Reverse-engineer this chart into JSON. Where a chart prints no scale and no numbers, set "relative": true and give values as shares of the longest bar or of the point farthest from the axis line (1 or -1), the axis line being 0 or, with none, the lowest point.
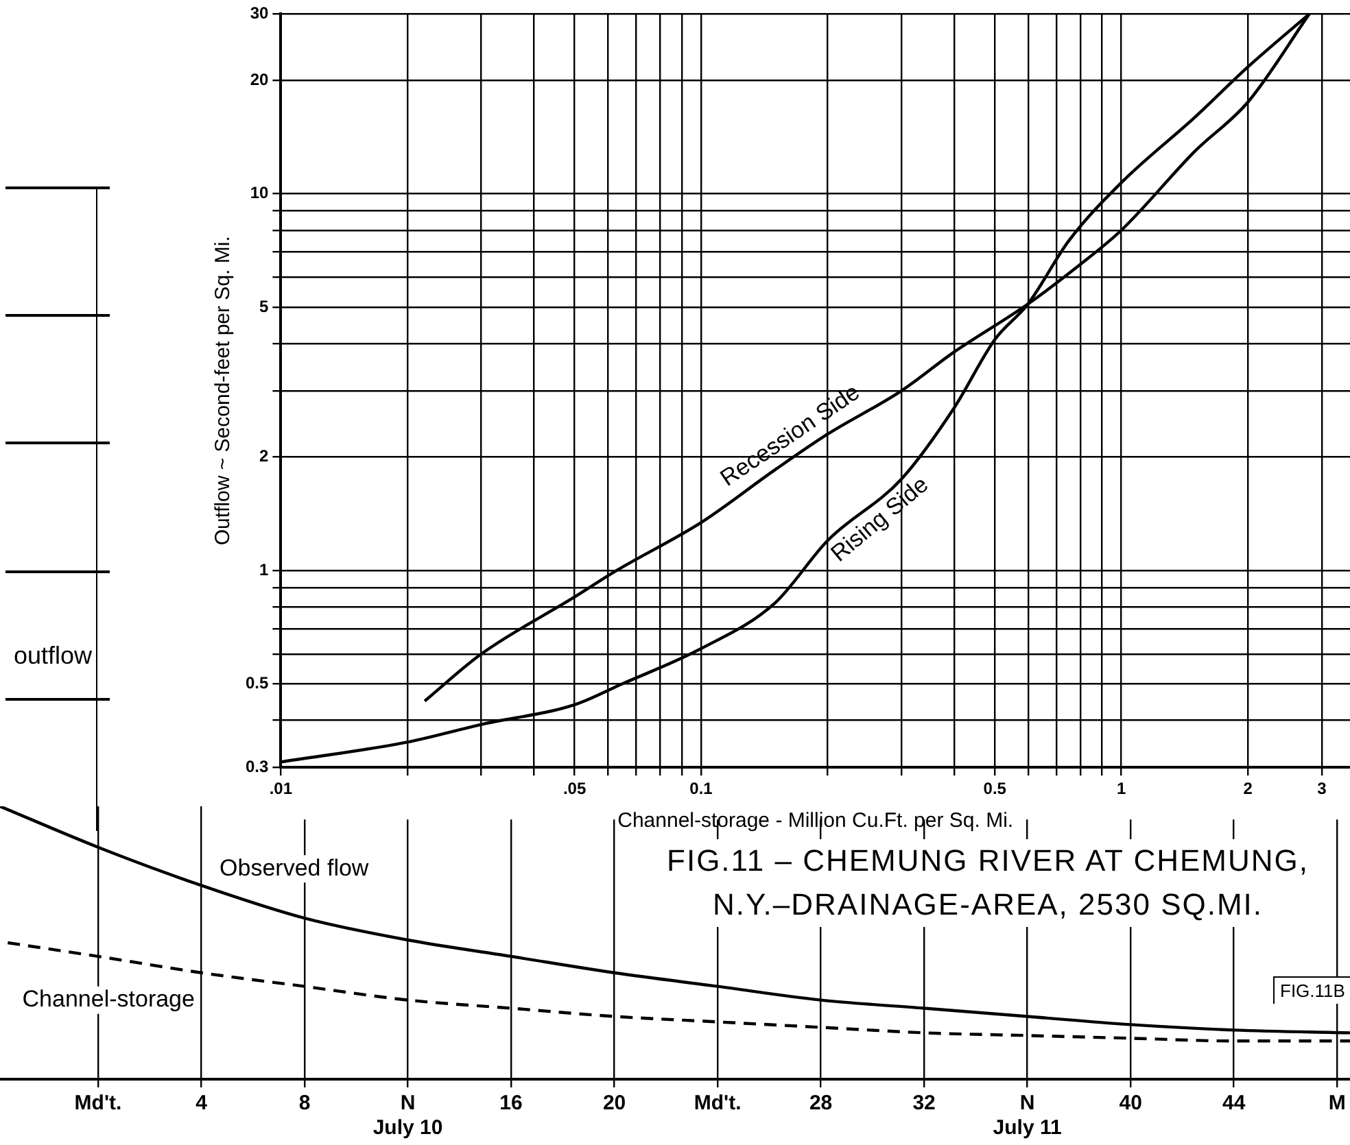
{
  "chart_data": [
    {
      "type": "line",
      "title": "FIG.11 – CHEMUNG RIVER AT CHEMUNG, N.Y.–DRAINAGE-AREA, 2530 SQ.MI.",
      "xlabel": "Channel-storage - Million Cu.Ft. per Sq. Mi.",
      "ylabel": "Outflow ~ Second-feet per Sq. Mi.",
      "log": "xy",
      "xlim": [
        0.01,
        3.5
      ],
      "ylim": [
        0.3,
        30
      ],
      "xticks": [
        {
          "value": 0.01,
          "label": ".01"
        },
        {
          "value": 0.02,
          "label": null
        },
        {
          "value": 0.03,
          "label": null
        },
        {
          "value": 0.04,
          "label": null
        },
        {
          "value": 0.05,
          "label": ".05"
        },
        {
          "value": 0.06,
          "label": null
        },
        {
          "value": 0.07,
          "label": null
        },
        {
          "value": 0.08,
          "label": null
        },
        {
          "value": 0.09,
          "label": null
        },
        {
          "value": 0.1,
          "label": "0.1"
        },
        {
          "value": 0.2,
          "label": null
        },
        {
          "value": 0.3,
          "label": null
        },
        {
          "value": 0.4,
          "label": null
        },
        {
          "value": 0.5,
          "label": "0.5"
        },
        {
          "value": 0.6,
          "label": null
        },
        {
          "value": 0.7,
          "label": null
        },
        {
          "value": 0.8,
          "label": null
        },
        {
          "value": 0.9,
          "label": null
        },
        1,
        2,
        3
      ],
      "yticks": [
        0.3,
        {
          "value": 0.4,
          "label": null
        },
        0.5,
        {
          "value": 0.6,
          "label": null
        },
        {
          "value": 0.7,
          "label": null
        },
        {
          "value": 0.8,
          "label": null
        },
        {
          "value": 0.9,
          "label": null
        },
        1,
        2,
        {
          "value": 3,
          "label": null
        },
        {
          "value": 4,
          "label": null
        },
        5,
        {
          "value": 6,
          "label": null
        },
        {
          "value": 7,
          "label": null
        },
        {
          "value": 8,
          "label": null
        },
        {
          "value": 9,
          "label": null
        },
        10,
        20,
        30
      ],
      "grid": true,
      "legend": false,
      "marker": "none",
      "series": [
        {
          "name": "Recession Side",
          "color": "#000000",
          "x": [
            0.022,
            0.03,
            0.05,
            0.063,
            0.1,
            0.15,
            0.2,
            0.3,
            0.4,
            0.6,
            0.8,
            1,
            1.5,
            2,
            2.8
          ],
          "values": [
            0.45,
            0.6,
            0.85,
            1.0,
            1.34,
            1.85,
            2.3,
            3.0,
            3.8,
            5.1,
            6.5,
            8.0,
            13,
            17.5,
            30
          ]
        },
        {
          "name": "Rising Side",
          "color": "#000000",
          "x": [
            0.01,
            0.02,
            0.03,
            0.05,
            0.065,
            0.1,
            0.15,
            0.2,
            0.3,
            0.4,
            0.5,
            0.6,
            0.75,
            1,
            1.5,
            2,
            2.8
          ],
          "values": [
            0.31,
            0.35,
            0.39,
            0.44,
            0.5,
            0.62,
            0.82,
            1.2,
            1.75,
            2.7,
            4.1,
            5.1,
            7.5,
            10.7,
            16,
            21.7,
            30
          ]
        }
      ]
    },
    {
      "type": "line",
      "relative": true,
      "xlim": [
        -3.8,
        48.5
      ],
      "xticks": [
        {
          "value": 0,
          "label": "Md't."
        },
        4,
        8,
        {
          "value": 12,
          "label": "N\nJuly 10"
        },
        16,
        20,
        {
          "value": 24,
          "label": "Md't."
        },
        28,
        32,
        {
          "value": 36,
          "label": "N\nJuly 11"
        },
        40,
        44,
        {
          "value": 48,
          "label": "M"
        }
      ],
      "grid": "x",
      "legend": false,
      "marker": "none",
      "annotations": [
        "outflow",
        "FIG.11B"
      ],
      "series": [
        {
          "name": "Observed flow",
          "color": "#000000",
          "line_style": "solid",
          "x": [
            -3.8,
            0,
            4,
            8,
            12,
            16,
            20,
            24,
            28,
            32,
            36,
            40,
            44,
            48.5
          ],
          "values": [
            1,
            0.85,
            0.71,
            0.59,
            0.51,
            0.45,
            0.39,
            0.34,
            0.29,
            0.26,
            0.23,
            0.2,
            0.18,
            0.17
          ]
        },
        {
          "name": "Channel-storage",
          "color": "#000000",
          "line_style": "dashed",
          "x": [
            -3.5,
            0,
            4,
            8,
            12,
            16,
            20,
            24,
            28,
            32,
            36,
            40,
            44,
            48.5
          ],
          "values": [
            0.5,
            0.45,
            0.39,
            0.34,
            0.29,
            0.26,
            0.23,
            0.21,
            0.19,
            0.17,
            0.16,
            0.15,
            0.14,
            0.14
          ]
        }
      ]
    }
  ]
}
